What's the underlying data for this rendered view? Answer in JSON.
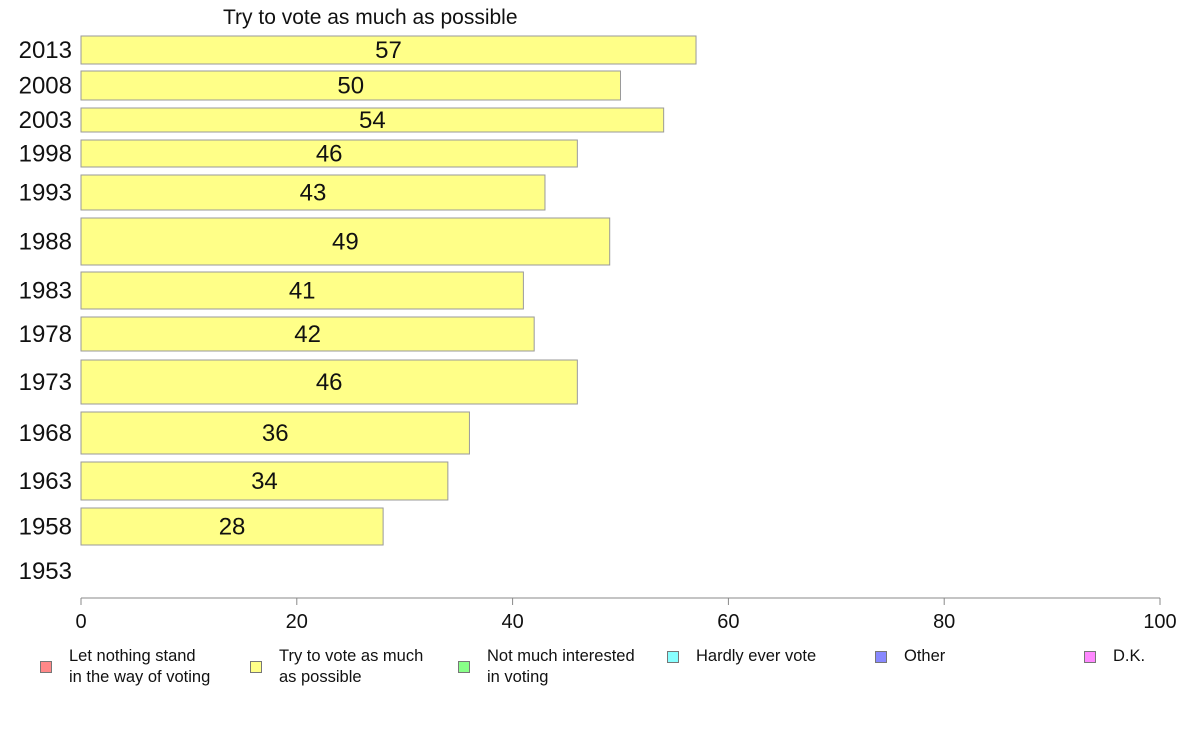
{
  "chart_data": {
    "type": "bar",
    "orientation": "horizontal",
    "title": "Try to vote as much as possible",
    "categories": [
      "2013",
      "2008",
      "2003",
      "1998",
      "1993",
      "1988",
      "1983",
      "1978",
      "1973",
      "1968",
      "1963",
      "1958",
      "1953"
    ],
    "series": [
      {
        "name": "Try to vote as much as possible",
        "values": [
          57,
          50,
          54,
          46,
          43,
          49,
          41,
          42,
          46,
          36,
          34,
          28,
          null
        ],
        "color": "#ffff88"
      }
    ],
    "xlim": [
      0,
      100
    ],
    "xticks": [
      0,
      20,
      40,
      60,
      80,
      100
    ],
    "grid": false,
    "legend_position": "bottom",
    "legend": [
      {
        "label": "Let nothing stand\nin the way of voting",
        "color": "#ff8888"
      },
      {
        "label": "Try to vote as much\nas possible",
        "color": "#ffff88"
      },
      {
        "label": "Not much interested\nin voting",
        "color": "#88ff88"
      },
      {
        "label": "Hardly ever vote",
        "color": "#88ffff"
      },
      {
        "label": "Other",
        "color": "#8888ff"
      },
      {
        "label": "D.K.",
        "color": "#ff88ff"
      }
    ]
  }
}
